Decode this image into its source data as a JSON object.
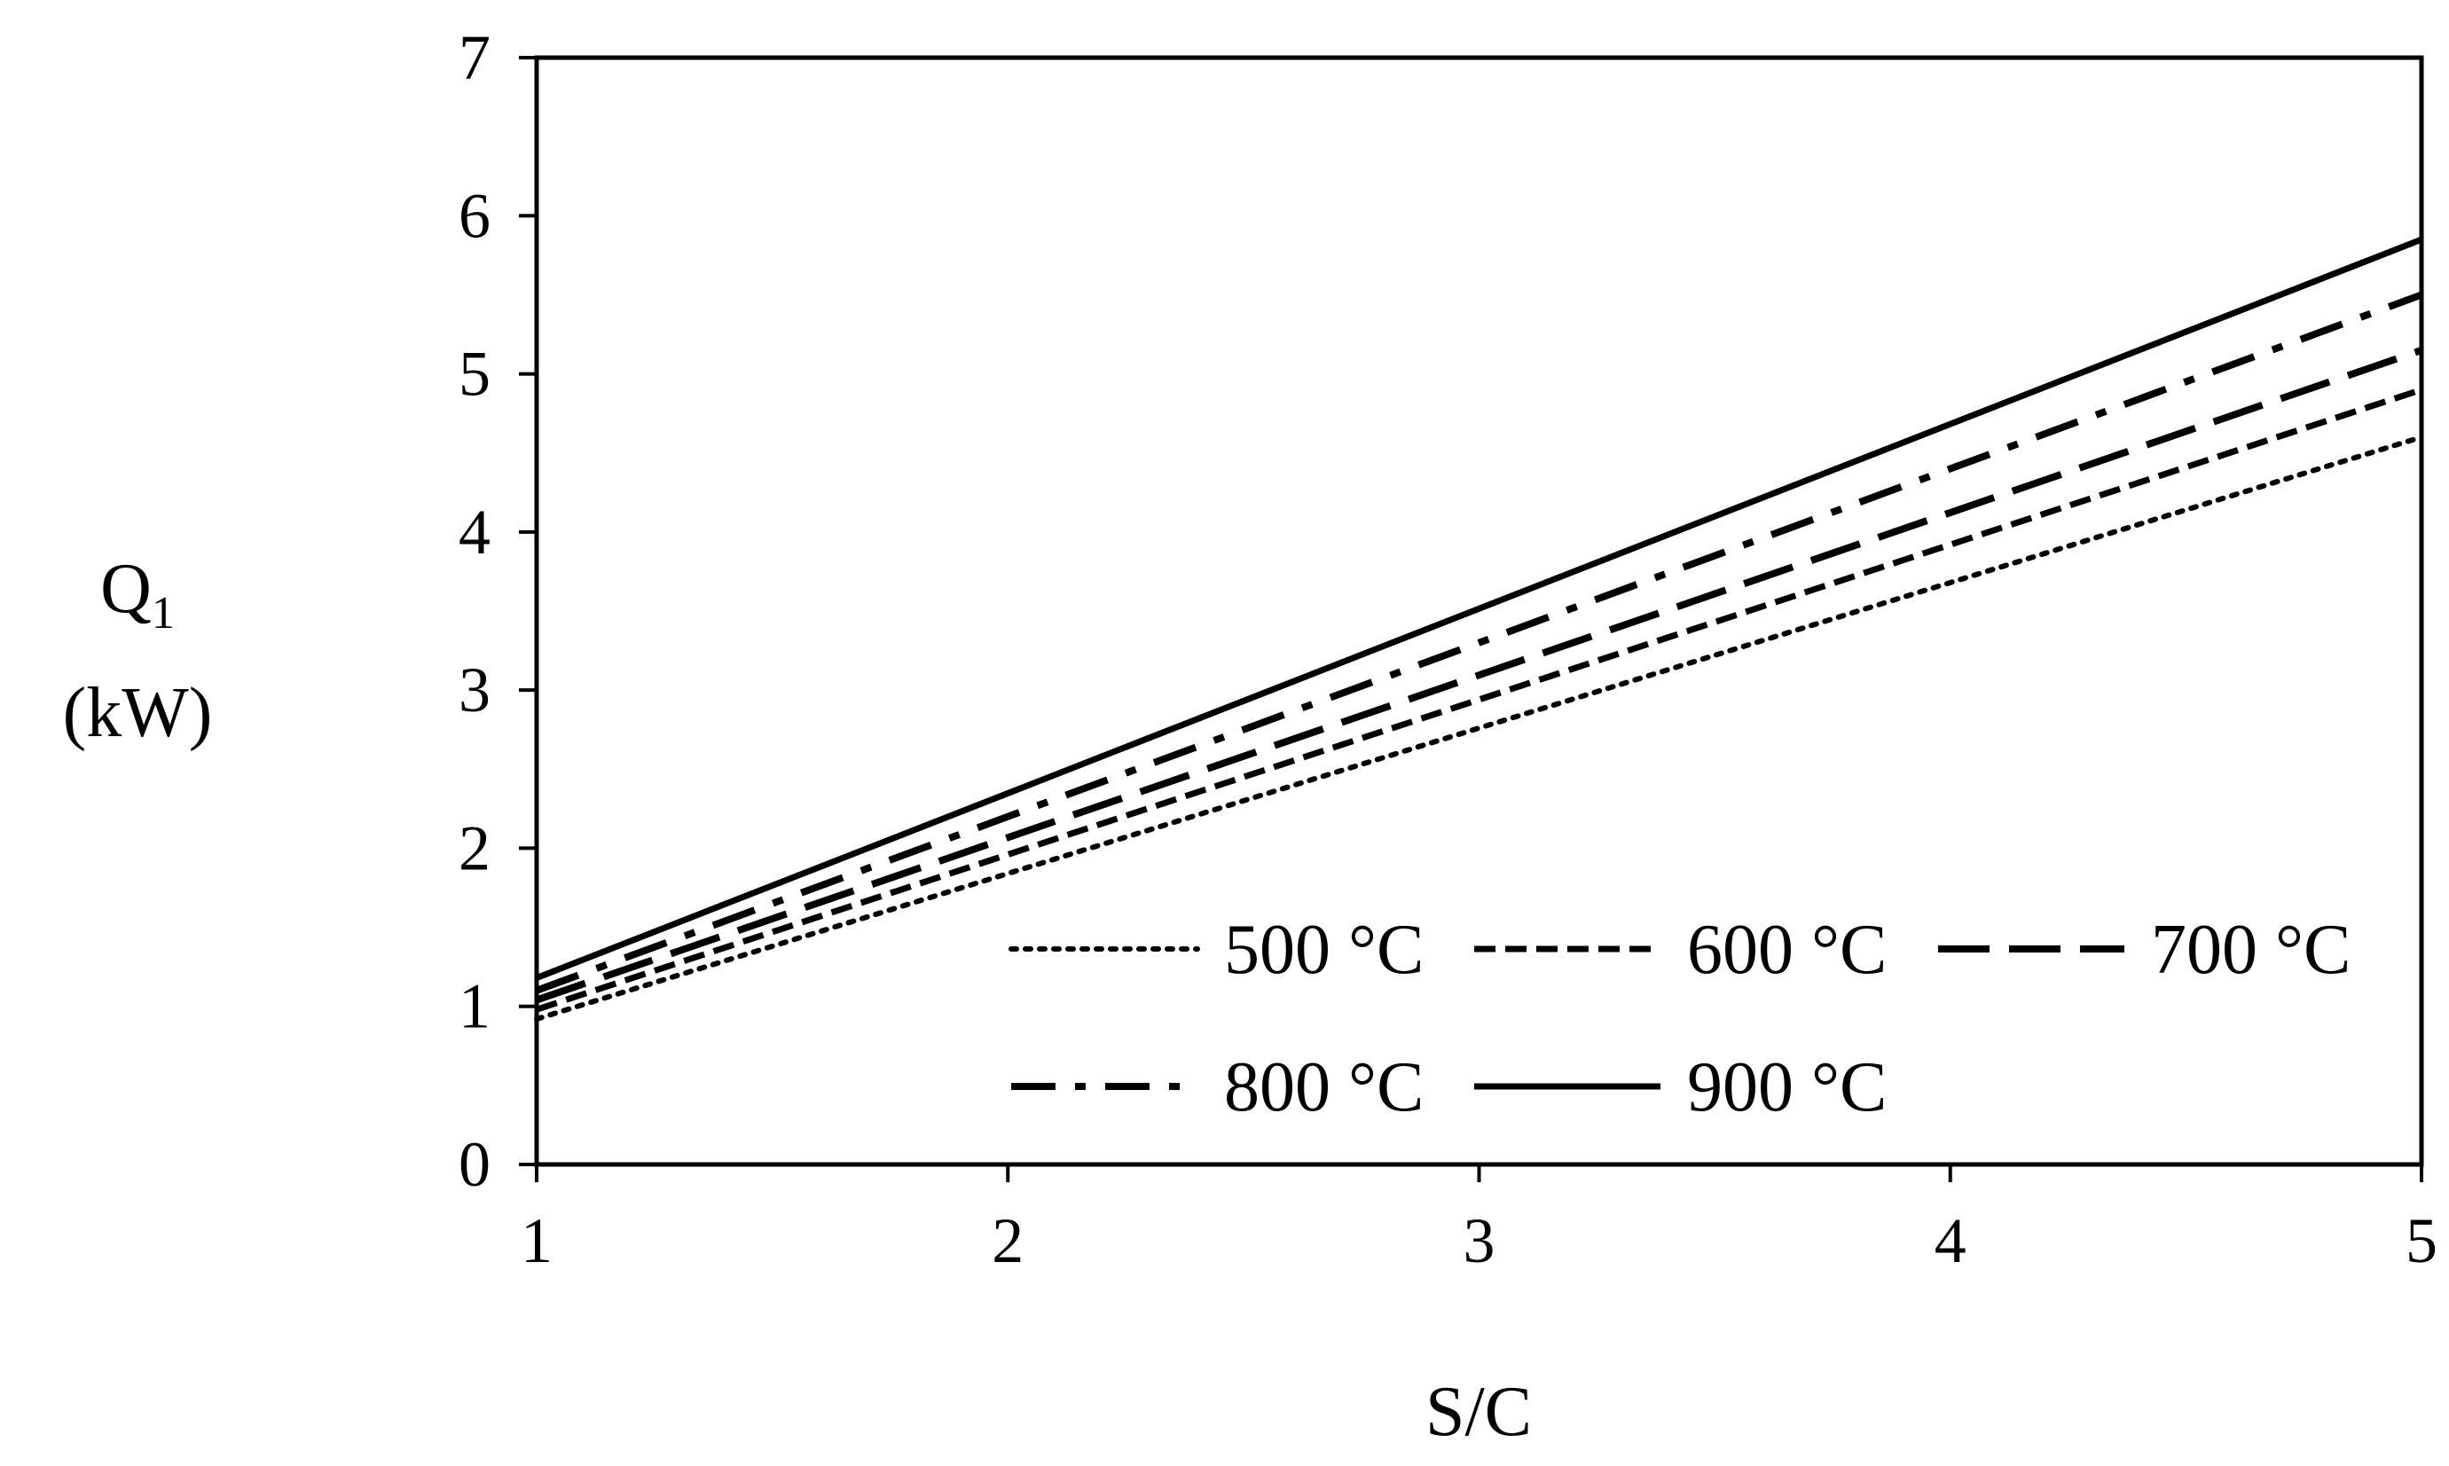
{
  "chart_data": {
    "type": "line",
    "xlabel": "S/C",
    "ylabel_main": "Q",
    "ylabel_sub": "1",
    "ylabel_unit": "(kW)",
    "xlim": [
      1,
      5
    ],
    "ylim": [
      0,
      7
    ],
    "xticks": [
      1,
      2,
      3,
      4,
      5
    ],
    "yticks": [
      0,
      1,
      2,
      3,
      4,
      5,
      6,
      7
    ],
    "grid": false,
    "legend_position": "bottom-right inside plot",
    "series": [
      {
        "name": "500 °C",
        "style": "dotted",
        "x": [
          1,
          5
        ],
        "y": [
          0.92,
          4.6
        ]
      },
      {
        "name": "600 °C",
        "style": "short-dash",
        "x": [
          1,
          5
        ],
        "y": [
          0.98,
          4.9
        ]
      },
      {
        "name": "700 °C",
        "style": "long-dash",
        "x": [
          1,
          5
        ],
        "y": [
          1.04,
          5.15
        ]
      },
      {
        "name": "800 °C",
        "style": "dash-dot",
        "x": [
          1,
          5
        ],
        "y": [
          1.1,
          5.5
        ]
      },
      {
        "name": "900 °C",
        "style": "solid",
        "x": [
          1,
          5
        ],
        "y": [
          1.18,
          5.85
        ]
      }
    ],
    "line_color": "#000000"
  }
}
